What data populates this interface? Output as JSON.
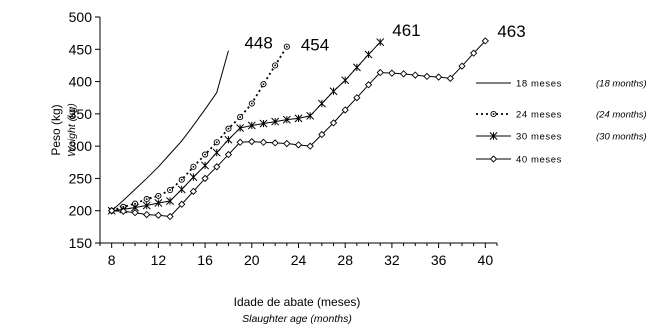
{
  "chart_data": {
    "type": "line",
    "title": "",
    "ylabel": "Peso (kg)",
    "ylabel_translation": "Weight (kg)",
    "xlabel": "Idade de abate (meses)",
    "xlabel_translation": "Slaughter age (months)",
    "xlim": [
      7,
      41
    ],
    "ylim": [
      150,
      500
    ],
    "x_ticks": [
      8,
      12,
      16,
      20,
      24,
      28,
      32,
      36,
      40
    ],
    "y_ticks": [
      150,
      200,
      250,
      300,
      350,
      400,
      450,
      500
    ],
    "grid": false,
    "legend_position": "right",
    "series": [
      {
        "name": "18 meses",
        "translation": "(18 months)",
        "style": "solid",
        "marker": "none",
        "end_label": "448",
        "x": [
          8,
          9,
          10,
          11,
          12,
          13,
          14,
          15,
          16,
          17,
          18
        ],
        "y": [
          200,
          216,
          233,
          250,
          268,
          288,
          308,
          332,
          357,
          383,
          448
        ]
      },
      {
        "name": "24 meses",
        "translation": "(24 months)",
        "style": "dotted",
        "marker": "circle",
        "end_label": "454",
        "x": [
          8,
          9,
          10,
          11,
          12,
          13,
          14,
          15,
          16,
          17,
          18,
          19,
          20,
          21,
          22,
          23
        ],
        "y": [
          200,
          206,
          211,
          218,
          223,
          232,
          248,
          268,
          287,
          306,
          327,
          345,
          366,
          396,
          425,
          454
        ]
      },
      {
        "name": "30 meses",
        "translation": "(30 months)",
        "style": "solid",
        "marker": "star",
        "end_label": "461",
        "x": [
          8,
          9,
          10,
          11,
          12,
          13,
          14,
          15,
          16,
          17,
          18,
          19,
          20,
          21,
          22,
          23,
          24,
          25,
          26,
          27,
          28,
          29,
          30,
          31
        ],
        "y": [
          200,
          202,
          205,
          208,
          212,
          215,
          233,
          252,
          270,
          290,
          310,
          328,
          332,
          335,
          338,
          341,
          343,
          347,
          366,
          385,
          402,
          422,
          442,
          461
        ]
      },
      {
        "name": "40 meses",
        "translation": "",
        "style": "solid",
        "marker": "diamond",
        "end_label": "463",
        "x": [
          8,
          9,
          10,
          11,
          12,
          13,
          14,
          15,
          16,
          17,
          18,
          19,
          20,
          21,
          22,
          23,
          24,
          25,
          26,
          27,
          28,
          29,
          30,
          31,
          32,
          33,
          34,
          35,
          36,
          37,
          38,
          39,
          40
        ],
        "y": [
          200,
          199,
          197,
          194,
          193,
          191,
          210,
          230,
          250,
          268,
          287,
          306,
          307,
          306,
          305,
          304,
          302,
          300,
          318,
          336,
          356,
          375,
          395,
          414,
          413,
          412,
          410,
          408,
          407,
          405,
          424,
          444,
          463
        ]
      }
    ]
  }
}
